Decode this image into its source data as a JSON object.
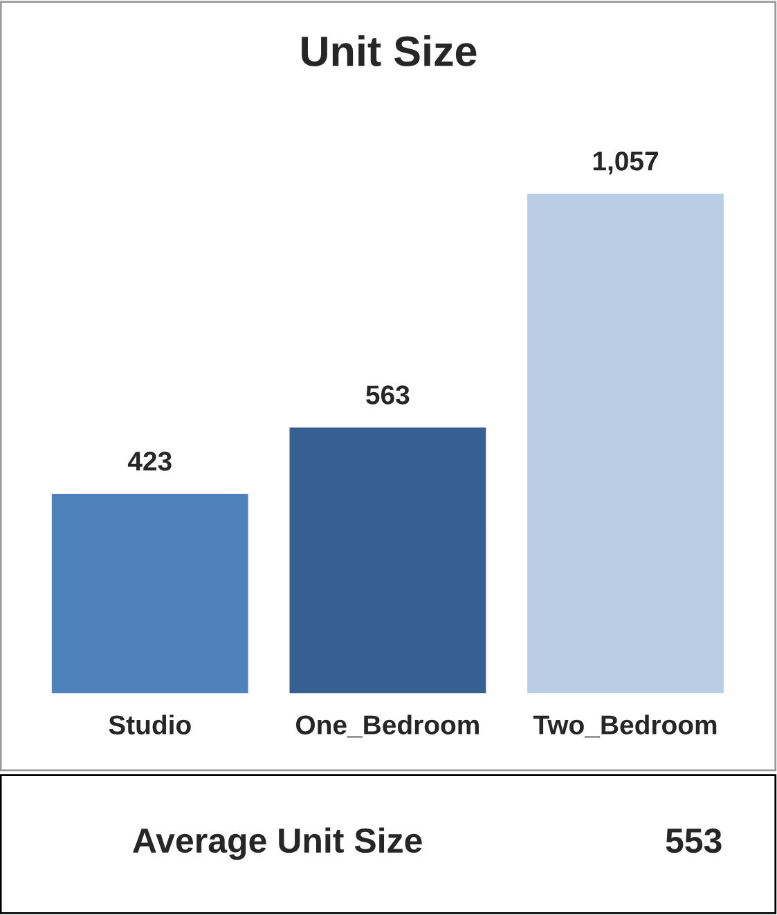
{
  "chart_data": {
    "type": "bar",
    "title": "Unit Size",
    "categories": [
      "Studio",
      "One_Bedroom",
      "Two_Bedroom"
    ],
    "values": [
      423,
      563,
      1057
    ],
    "colors": [
      "#4f81bd",
      "#376092",
      "#b9cde5"
    ],
    "value_labels": [
      "423",
      "563",
      "1,057"
    ],
    "grid": false,
    "legend": false,
    "tick_labels": "x",
    "annotations": [
      "Average Unit Size",
      "553"
    ]
  }
}
